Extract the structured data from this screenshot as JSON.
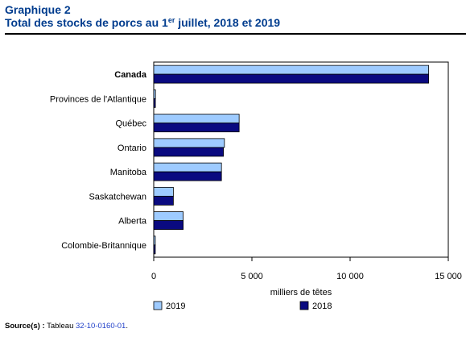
{
  "header": {
    "label": "Graphique 2",
    "title_pre": "Total des stocks de porcs au 1",
    "title_sup": "er",
    "title_post": " juillet, 2018 et 2019"
  },
  "chart_data": {
    "type": "bar",
    "orientation": "horizontal",
    "categories": [
      "Canada",
      "Provinces de l'Atlantique",
      "Québec",
      "Ontario",
      "Manitoba",
      "Saskatchewan",
      "Alberta",
      "Colombie-Britannique"
    ],
    "bold_categories": [
      "Canada"
    ],
    "series": [
      {
        "name": "2019",
        "color": "#9ecbff",
        "values": [
          14000,
          90,
          4350,
          3600,
          3450,
          1000,
          1500,
          80
        ]
      },
      {
        "name": "2018",
        "color": "#0a0a80",
        "values": [
          14000,
          85,
          4350,
          3550,
          3450,
          1000,
          1500,
          80
        ]
      }
    ],
    "xlabel": "milliers de têtes",
    "xlim": [
      0,
      15000
    ],
    "xticks": [
      0,
      5000,
      10000,
      15000
    ],
    "xtick_labels": [
      "0",
      "5 000",
      "10 000",
      "15 000"
    ],
    "grid": false,
    "legend_position": "bottom"
  },
  "footer": {
    "source_label": "Source(s) :",
    "source_text": " Tableau ",
    "source_link": "32-10-0160-01",
    "source_end": "."
  }
}
